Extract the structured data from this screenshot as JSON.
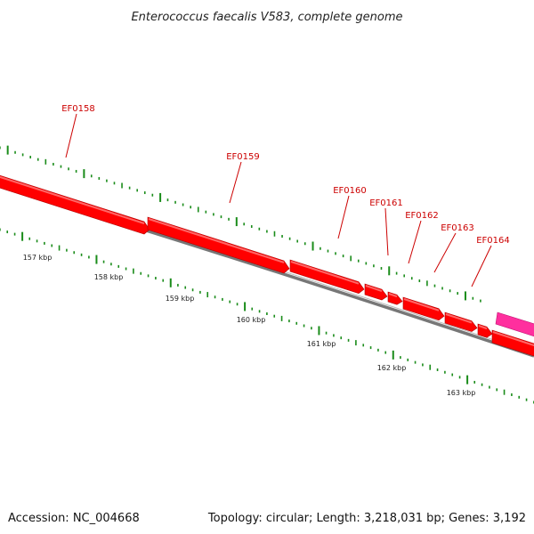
{
  "title": "Enterococcus faecalis V583, complete genome",
  "footer": {
    "accession": "Accession: NC_004668",
    "summary": "Topology: circular; Length: 3,218,031 bp; Genes: 3,192"
  },
  "colors": {
    "gene": "#ff0000",
    "gene_highlight": "#ff6666",
    "gene_alt": "#ff2f9e",
    "backbone": "#888888",
    "tick": "#1a8c1a",
    "label": "#cc0000"
  },
  "genes": [
    {
      "name": "EF0158",
      "labeled": true
    },
    {
      "name": "EF0159",
      "labeled": true
    },
    {
      "name": "EF0160",
      "labeled": true
    },
    {
      "name": "EF0161",
      "labeled": true
    },
    {
      "name": "EF0162",
      "labeled": true
    },
    {
      "name": "EF0163",
      "labeled": true
    },
    {
      "name": "EF0164",
      "labeled": true
    }
  ],
  "kbp_labels": [
    "157 kbp",
    "158 kbp",
    "159 kbp",
    "160 kbp",
    "161 kbp",
    "162 kbp",
    "163 kbp"
  ]
}
